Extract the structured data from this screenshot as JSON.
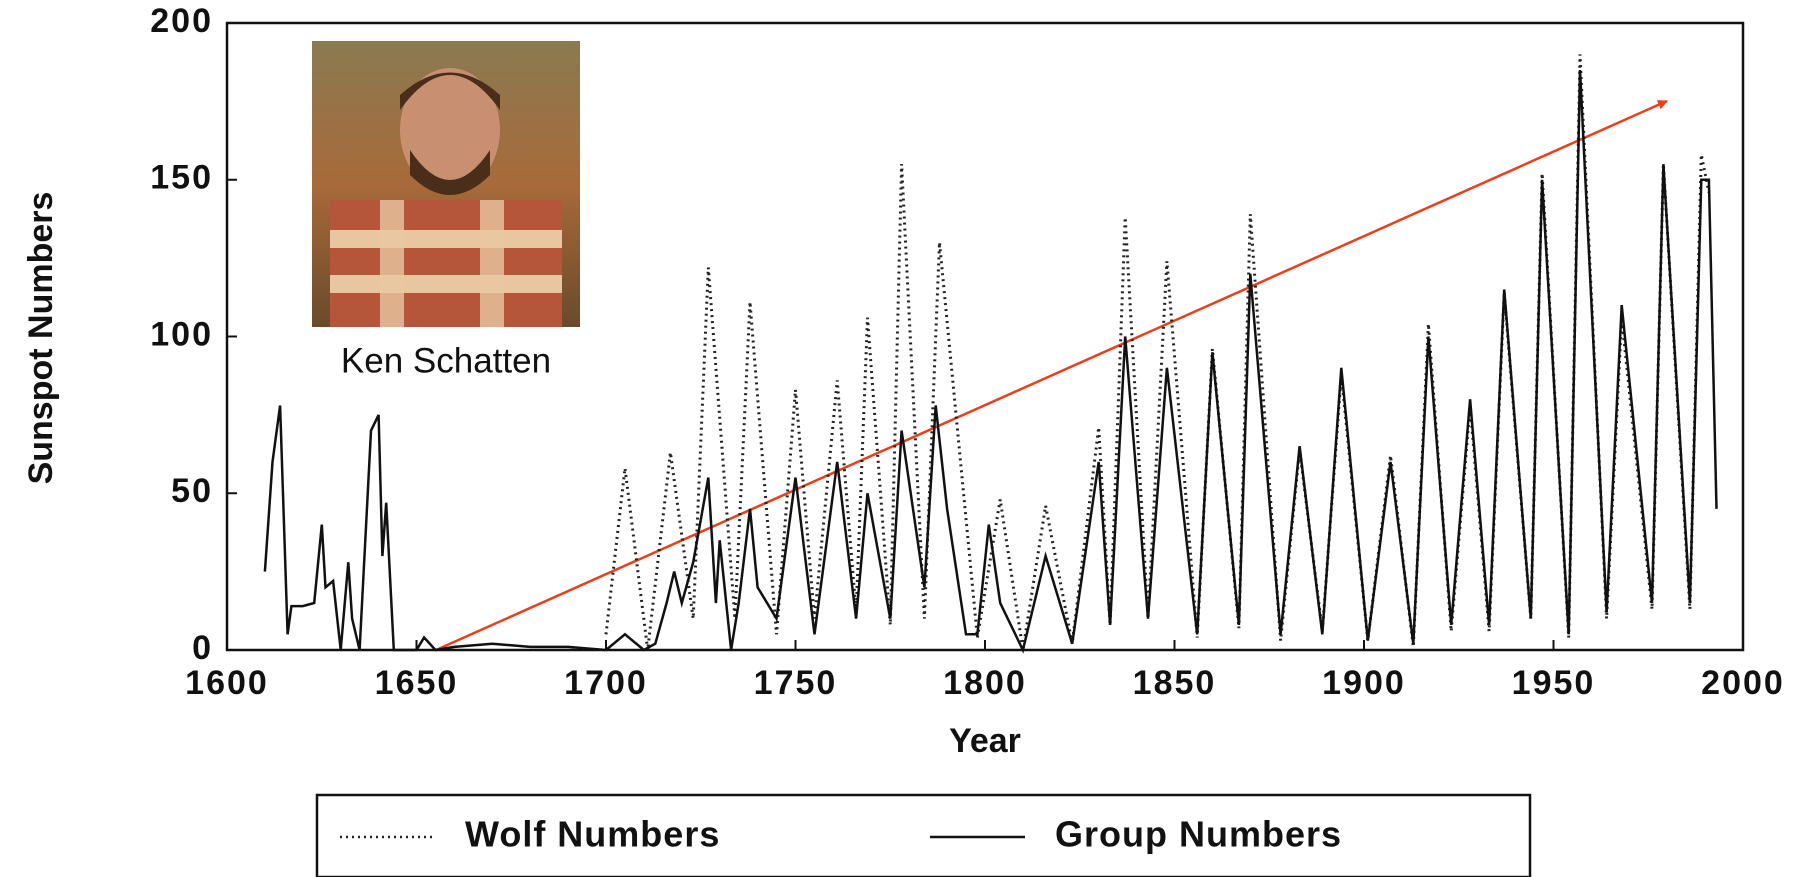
{
  "chart_data": {
    "type": "line",
    "annotation": "Ken Schatten",
    "xlabel": "Year",
    "ylabel": "Sunspot Numbers",
    "xlim": [
      1600,
      2000
    ],
    "xticks": [
      1600,
      1650,
      1700,
      1750,
      1800,
      1850,
      1900,
      1950,
      2000
    ],
    "ylim": [
      0,
      200
    ],
    "yticks": [
      0,
      50,
      100,
      150,
      200
    ],
    "series": [
      {
        "name": "Wolf Numbers",
        "color": "#222222",
        "style": "dotted",
        "x": [
          1700,
          1705,
          1711,
          1717,
          1723,
          1727,
          1734,
          1738,
          1745,
          1750,
          1755,
          1761,
          1766,
          1769,
          1775,
          1778,
          1784,
          1788,
          1798,
          1804,
          1810,
          1816,
          1823,
          1830,
          1833,
          1837,
          1843,
          1848,
          1856,
          1860,
          1867,
          1870,
          1878,
          1883,
          1889,
          1894,
          1901,
          1907,
          1913,
          1917,
          1923,
          1928,
          1933,
          1937,
          1944,
          1947,
          1954,
          1957,
          1964,
          1968,
          1976,
          1979,
          1986,
          1989,
          1991
        ],
        "values": [
          5,
          58,
          0,
          63,
          10,
          122,
          10,
          111,
          5,
          83,
          10,
          86,
          12,
          106,
          8,
          155,
          10,
          130,
          4,
          48,
          0,
          46,
          2,
          71,
          8,
          138,
          10,
          124,
          4,
          96,
          7,
          139,
          3,
          64,
          6,
          88,
          3,
          62,
          1,
          104,
          6,
          78,
          6,
          114,
          10,
          152,
          4,
          190,
          10,
          106,
          13,
          155,
          13,
          158,
          146
        ]
      },
      {
        "name": "Group Numbers",
        "color": "#111111",
        "style": "solid",
        "x": [
          1610,
          1612,
          1614,
          1616,
          1617,
          1620,
          1623,
          1625,
          1626,
          1628,
          1630,
          1632,
          1633,
          1635,
          1638,
          1640,
          1641,
          1642,
          1644,
          1650,
          1652,
          1655,
          1660,
          1670,
          1680,
          1690,
          1700,
          1705,
          1710,
          1713,
          1716,
          1718,
          1720,
          1723,
          1727,
          1729,
          1730,
          1733,
          1735,
          1738,
          1740,
          1745,
          1750,
          1755,
          1761,
          1766,
          1769,
          1775,
          1778,
          1784,
          1787,
          1790,
          1795,
          1798,
          1801,
          1804,
          1810,
          1816,
          1823,
          1830,
          1833,
          1837,
          1843,
          1848,
          1856,
          1860,
          1867,
          1870,
          1878,
          1883,
          1889,
          1894,
          1901,
          1907,
          1913,
          1917,
          1923,
          1928,
          1933,
          1937,
          1944,
          1947,
          1954,
          1957,
          1964,
          1968,
          1976,
          1979,
          1986,
          1989,
          1991,
          1993
        ],
        "values": [
          25,
          60,
          78,
          5,
          14,
          14,
          15,
          40,
          20,
          22,
          0,
          28,
          10,
          0,
          70,
          75,
          30,
          47,
          0,
          0,
          4,
          0,
          1,
          2,
          1,
          1,
          0,
          5,
          0,
          2,
          15,
          25,
          15,
          28,
          55,
          15,
          35,
          0,
          15,
          45,
          20,
          10,
          55,
          5,
          60,
          10,
          50,
          10,
          70,
          20,
          78,
          45,
          5,
          5,
          40,
          15,
          0,
          30,
          2,
          60,
          8,
          100,
          10,
          90,
          5,
          95,
          8,
          120,
          5,
          65,
          5,
          90,
          3,
          60,
          2,
          100,
          8,
          80,
          8,
          115,
          10,
          150,
          5,
          185,
          12,
          110,
          15,
          155,
          15,
          150,
          150,
          45
        ]
      }
    ]
  }
}
